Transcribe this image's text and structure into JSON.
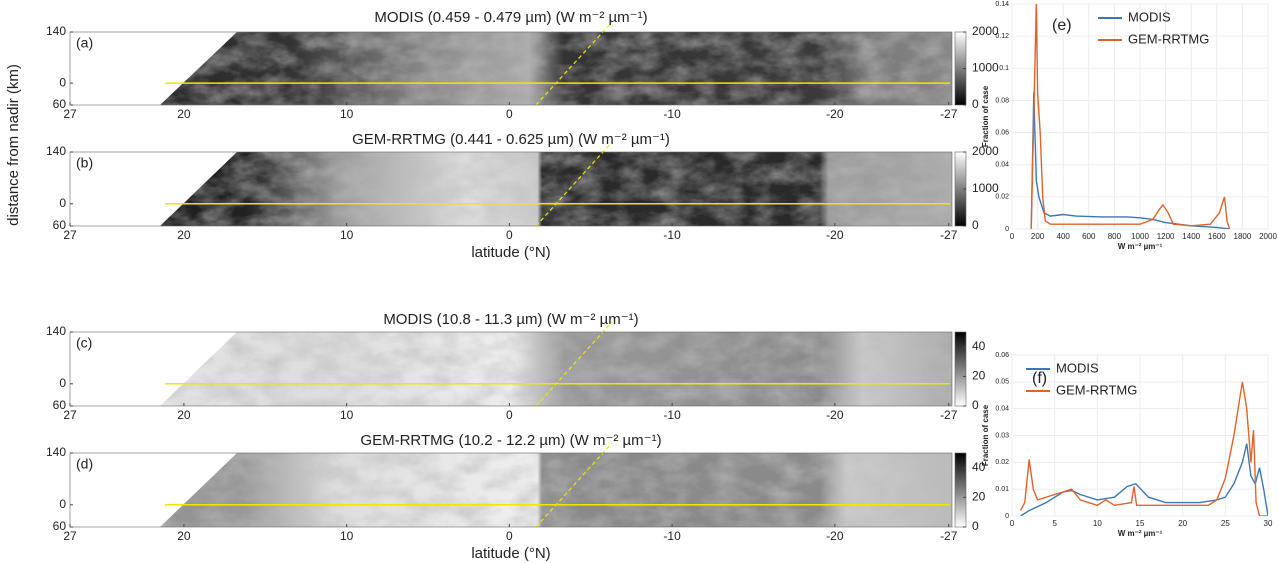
{
  "chart_data": [
    {
      "type": "image",
      "label": "(a)",
      "title": "MODIS (0.459 - 0.479 µm) (W m⁻² µm⁻¹)",
      "ylabel": "distance from nadir (km)",
      "xlim": [
        27,
        -27.2
      ],
      "xticks": [
        27,
        20,
        10,
        0,
        -10,
        -20,
        -27
      ],
      "ylim": [
        -60,
        140
      ],
      "yticks": [
        140,
        0,
        {
          "value": -60,
          "label": "60"
        }
      ],
      "clim": [
        0,
        2000
      ],
      "cticks": [
        0,
        1000,
        2000
      ],
      "colormap": "gray"
    },
    {
      "type": "image",
      "label": "(b)",
      "title": "GEM-RRTMG (0.441 - 0.625 µm) (W m⁻² µm⁻¹)",
      "xlabel": "latitude (°N)",
      "xlim": [
        27,
        -27.2
      ],
      "xticks": [
        27,
        20,
        10,
        0,
        -10,
        -20,
        -27
      ],
      "ylim": [
        -60,
        140
      ],
      "yticks": [
        140,
        0,
        {
          "value": -60,
          "label": "60"
        }
      ],
      "clim": [
        0,
        2000
      ],
      "cticks": [
        0,
        1000,
        2000
      ],
      "colormap": "gray"
    },
    {
      "type": "image",
      "label": "(c)",
      "title": "MODIS (10.8 - 11.3 µm) (W m⁻² µm⁻¹)",
      "xlim": [
        27,
        -27.2
      ],
      "xticks": [
        27,
        20,
        10,
        0,
        -10,
        -20,
        -27
      ],
      "ylim": [
        -60,
        140
      ],
      "yticks": [
        140,
        0,
        {
          "value": -60,
          "label": "60"
        }
      ],
      "clim": [
        0,
        50
      ],
      "cticks": [
        0,
        20,
        40
      ],
      "colormap": "gray_r"
    },
    {
      "type": "image",
      "label": "(d)",
      "title": "GEM-RRTMG (10.2 - 12.2 µm) (W m⁻² µm⁻¹)",
      "xlabel": "latitude (°N)",
      "xlim": [
        27,
        -27.2
      ],
      "xticks": [
        27,
        20,
        10,
        0,
        -10,
        -20,
        -27
      ],
      "ylim": [
        -60,
        140
      ],
      "yticks": [
        140,
        0,
        {
          "value": -60,
          "label": "60"
        }
      ],
      "clim": [
        0,
        50
      ],
      "cticks": [
        0,
        20,
        40
      ],
      "colormap": "gray_r"
    },
    {
      "type": "line",
      "label": "(e)",
      "ylabel": "Fraction of case",
      "xlabel": "W m⁻² µm⁻¹",
      "grid": true,
      "xlim": [
        0,
        2000
      ],
      "xticks": [
        0,
        200,
        400,
        600,
        800,
        1000,
        1200,
        1400,
        1600,
        1800,
        2000
      ],
      "ylim": [
        0,
        0.14
      ],
      "yticks": [
        0,
        0.02,
        0.04,
        0.06,
        0.08,
        0.1,
        0.12,
        0.14
      ],
      "series": [
        {
          "name": "MODIS",
          "color": "#3a78b5",
          "x": [
            150,
            170,
            190,
            210,
            250,
            300,
            400,
            500,
            700,
            900,
            1000,
            1100,
            1200,
            1400,
            1600,
            1700
          ],
          "values": [
            0,
            0.085,
            0.03,
            0.02,
            0.01,
            0.008,
            0.009,
            0.008,
            0.0075,
            0.0075,
            0.007,
            0.006,
            0.004,
            0.002,
            0.001,
            0
          ]
        },
        {
          "name": "GEM-RRTMG",
          "color": "#e0632a",
          "x": [
            150,
            190,
            200,
            220,
            240,
            260,
            300,
            600,
            1000,
            1100,
            1150,
            1180,
            1220,
            1260,
            1400,
            1550,
            1620,
            1660,
            1680,
            1700
          ],
          "values": [
            0,
            0.14,
            0.085,
            0.06,
            0.02,
            0.005,
            0.003,
            0.003,
            0.003,
            0.006,
            0.012,
            0.015,
            0.01,
            0.003,
            0.002,
            0.003,
            0.01,
            0.02,
            0.005,
            0
          ]
        }
      ]
    },
    {
      "type": "line",
      "label": "(f)",
      "ylabel": "Fraction of case",
      "xlabel": "W m⁻² µm⁻¹",
      "grid": true,
      "xlim": [
        0,
        30
      ],
      "xticks": [
        0,
        5,
        10,
        15,
        20,
        25,
        30
      ],
      "ylim": [
        0,
        0.06
      ],
      "yticks": [
        0,
        0.01,
        0.02,
        0.03,
        0.04,
        0.05,
        0.06
      ],
      "series": [
        {
          "name": "MODIS",
          "color": "#3a78b5",
          "x": [
            1,
            2,
            4,
            6,
            7,
            8,
            10,
            12,
            13.5,
            14.5,
            16,
            18,
            20,
            22,
            24,
            25,
            26,
            27,
            27.5,
            28,
            28.5,
            29,
            29.5,
            30
          ],
          "values": [
            0,
            0.002,
            0.005,
            0.009,
            0.0095,
            0.008,
            0.006,
            0.007,
            0.011,
            0.012,
            0.007,
            0.005,
            0.005,
            0.005,
            0.006,
            0.007,
            0.012,
            0.02,
            0.027,
            0.015,
            0.012,
            0.018,
            0.01,
            0
          ]
        },
        {
          "name": "GEM-RRTMG",
          "color": "#e0632a",
          "x": [
            1,
            1.5,
            2,
            2.5,
            3,
            5,
            6,
            7,
            8,
            10,
            11,
            12,
            14,
            14.3,
            14.6,
            17,
            20,
            23,
            24,
            25,
            26,
            27,
            27.5,
            28,
            28.3,
            28.6,
            29,
            30
          ],
          "values": [
            0.002,
            0.005,
            0.021,
            0.01,
            0.006,
            0.008,
            0.009,
            0.01,
            0.006,
            0.004,
            0.006,
            0.004,
            0.005,
            0.011,
            0.004,
            0.004,
            0.004,
            0.004,
            0.006,
            0.014,
            0.03,
            0.05,
            0.04,
            0.02,
            0.032,
            0.005,
            0,
            0
          ]
        }
      ]
    }
  ]
}
